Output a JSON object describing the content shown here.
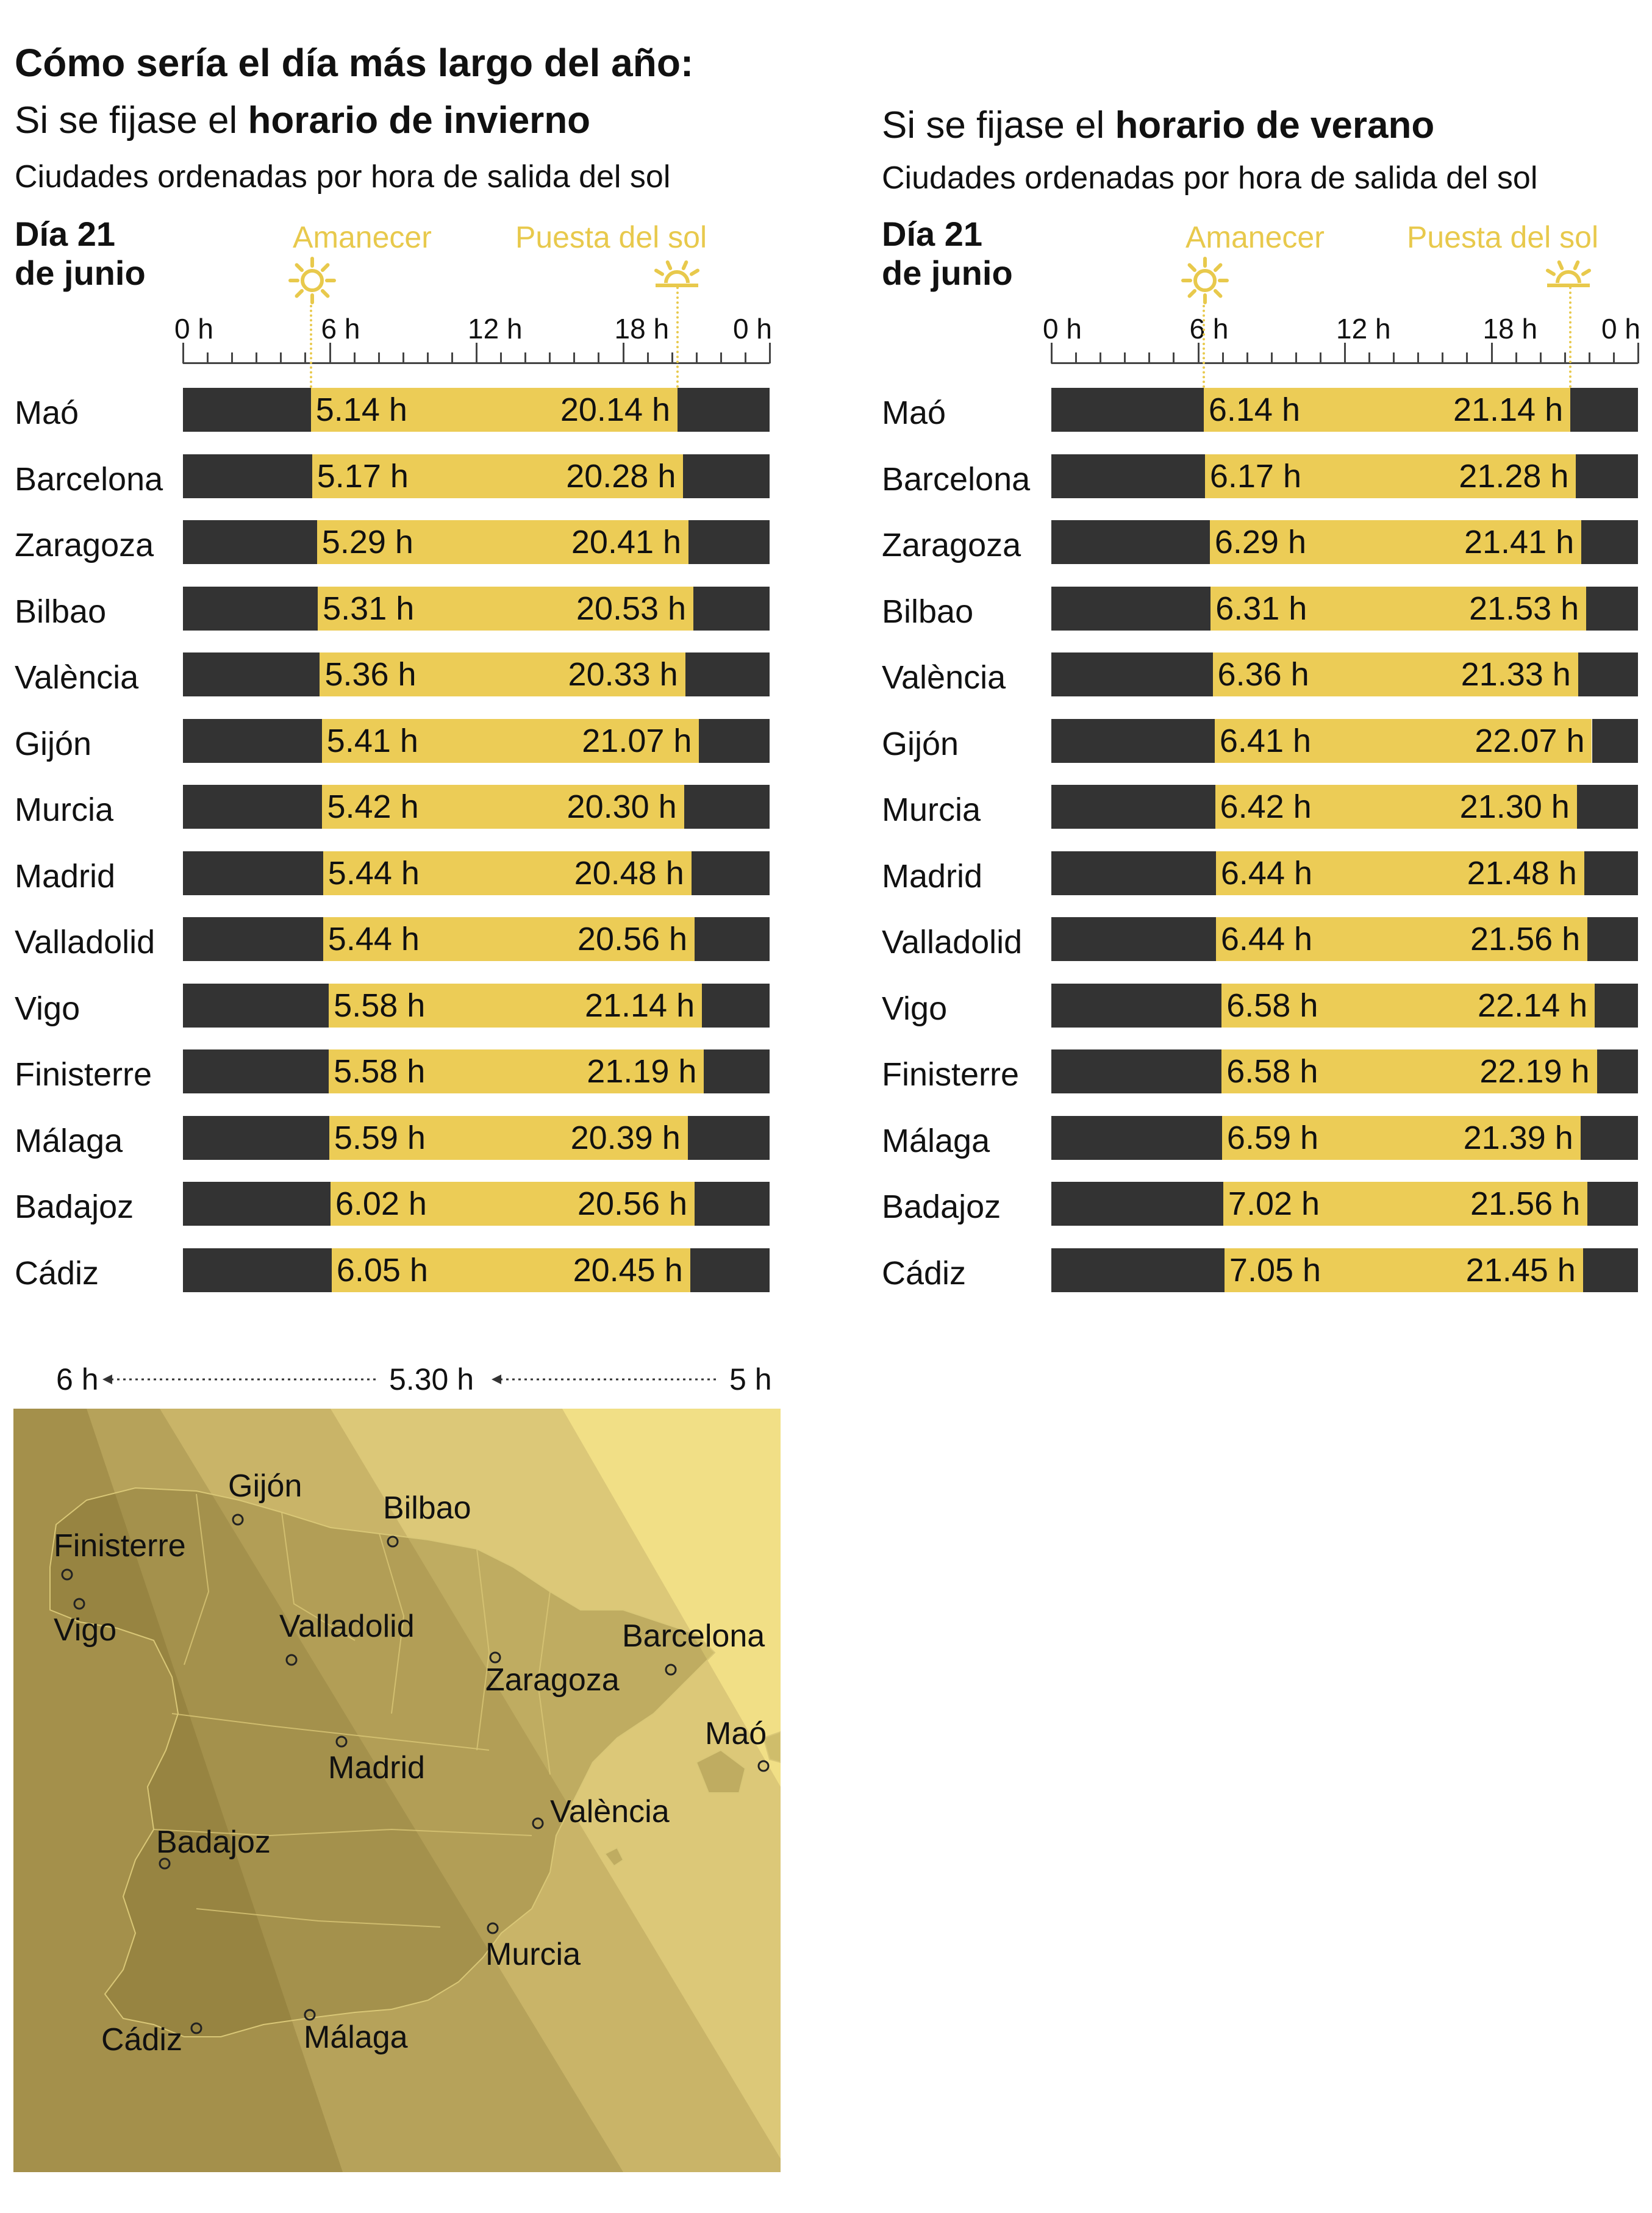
{
  "title": "Cómo sería el día más largo del año:",
  "legend": {
    "sunrise": "Amanecer",
    "sunset": "Puesta del sol"
  },
  "axis": {
    "ticks": [
      "0 h",
      "6 h",
      "12 h",
      "18 h",
      "0 h"
    ]
  },
  "colors": {
    "night": "#333333",
    "day": "#eccc56",
    "legend": "#e8c94c"
  },
  "chart_data": [
    {
      "type": "bar",
      "subtitle_prefix": "Si se fijase el ",
      "subtitle_bold": "horario de invierno",
      "note": "Ciudades ordenadas por hora de salida del sol",
      "day_label_1": "Día 21",
      "day_label_2": "de junio",
      "xlim": [
        0,
        24
      ],
      "cities": [
        "Maó",
        "Barcelona",
        "Zaragoza",
        "Bilbao",
        "València",
        "Gijón",
        "Murcia",
        "Madrid",
        "Valladolid",
        "Vigo",
        "Finisterre",
        "Málaga",
        "Badajoz",
        "Cádiz"
      ],
      "sunrise": [
        "5.14 h",
        "5.17 h",
        "5.29 h",
        "5.31 h",
        "5.36 h",
        "5.41 h",
        "5.42 h",
        "5.44 h",
        "5.44 h",
        "5.58 h",
        "5.58 h",
        "5.59 h",
        "6.02 h",
        "6.05 h"
      ],
      "sunset": [
        "20.14 h",
        "20.28 h",
        "20.41 h",
        "20.53 h",
        "20.33 h",
        "21.07 h",
        "20.30 h",
        "20.48 h",
        "20.56 h",
        "21.14 h",
        "21.19 h",
        "20.39 h",
        "20.56 h",
        "20.45 h"
      ]
    },
    {
      "type": "bar",
      "subtitle_prefix": "Si se fijase el ",
      "subtitle_bold": "horario de verano",
      "note": "Ciudades ordenadas por hora de salida del sol",
      "day_label_1": "Día 21",
      "day_label_2": "de junio",
      "xlim": [
        0,
        24
      ],
      "cities": [
        "Maó",
        "Barcelona",
        "Zaragoza",
        "Bilbao",
        "València",
        "Gijón",
        "Murcia",
        "Madrid",
        "Valladolid",
        "Vigo",
        "Finisterre",
        "Málaga",
        "Badajoz",
        "Cádiz"
      ],
      "sunrise": [
        "6.14 h",
        "6.17 h",
        "6.29 h",
        "6.31 h",
        "6.36 h",
        "6.41 h",
        "6.42 h",
        "6.44 h",
        "6.44 h",
        "6.58 h",
        "6.58 h",
        "6.59 h",
        "7.02 h",
        "7.05 h"
      ],
      "sunset": [
        "21.14 h",
        "21.28 h",
        "21.41 h",
        "21.53 h",
        "21.33 h",
        "22.07 h",
        "21.30 h",
        "21.48 h",
        "21.56 h",
        "22.14 h",
        "22.19 h",
        "21.39 h",
        "21.56 h",
        "21.45 h"
      ]
    }
  ],
  "map": {
    "scale_labels": [
      "6 h",
      "5.30 h",
      "5 h"
    ],
    "cities": [
      "Gijón",
      "Bilbao",
      "Finisterre",
      "Vigo",
      "Valladolid",
      "Barcelona",
      "Zaragoza",
      "Maó",
      "Madrid",
      "València",
      "Badajoz",
      "Murcia",
      "Cádiz",
      "Málaga"
    ]
  }
}
